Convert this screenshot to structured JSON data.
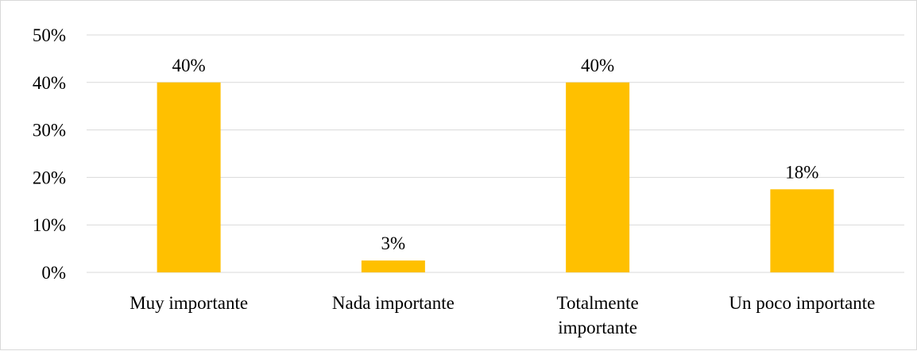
{
  "chart_data": {
    "type": "bar",
    "title": "",
    "xlabel": "",
    "ylabel": "",
    "categories": [
      [
        "Muy importante"
      ],
      [
        "Nada importante"
      ],
      [
        "Totalmente",
        "importante"
      ],
      [
        "Un poco importante"
      ]
    ],
    "values": [
      40,
      2.5,
      40,
      17.5
    ],
    "data_labels": [
      "40%",
      "3%",
      "40%",
      "18%"
    ],
    "y_ticks": [
      0,
      10,
      20,
      30,
      40,
      50
    ],
    "y_tick_labels": [
      "0%",
      "10%",
      "20%",
      "30%",
      "40%",
      "50%"
    ],
    "ylim": [
      0,
      50
    ],
    "grid": true,
    "legend": "none",
    "colors": {
      "bar": "#FFC000",
      "grid": "#d9d9d9",
      "frame": "#d9d9d9"
    }
  }
}
